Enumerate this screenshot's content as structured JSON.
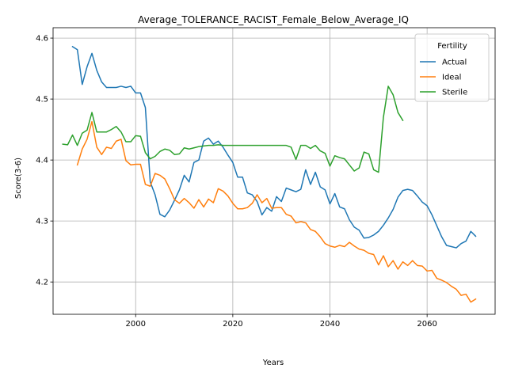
{
  "chart_data": {
    "type": "line",
    "title": "Average_TOLERANCE_RACIST_Female_Below_Average_IQ",
    "xlabel": "Years",
    "ylabel": "Score(3-6)",
    "xlim": [
      1983,
      2074
    ],
    "ylim": [
      4.147,
      4.617
    ],
    "xticks": [
      2000,
      2020,
      2040,
      2060
    ],
    "yticks": [
      4.2,
      4.3,
      4.4,
      4.5,
      4.6
    ],
    "grid": true,
    "legend": {
      "title": "Fertility",
      "placement": "top-right"
    },
    "series": [
      {
        "name": "Actual",
        "color": "#1f77b4",
        "points": [
          [
            1987,
            4.586
          ],
          [
            1988,
            4.581
          ],
          [
            1989,
            4.524
          ],
          [
            1990,
            4.553
          ],
          [
            1991,
            4.575
          ],
          [
            1992,
            4.547
          ],
          [
            1993,
            4.528
          ],
          [
            1994,
            4.519
          ],
          [
            1995,
            4.519
          ],
          [
            1996,
            4.519
          ],
          [
            1997,
            4.521
          ],
          [
            1998,
            4.519
          ],
          [
            1999,
            4.521
          ],
          [
            2000,
            4.51
          ],
          [
            2001,
            4.51
          ],
          [
            2002,
            4.486
          ],
          [
            2003,
            4.364
          ],
          [
            2004,
            4.343
          ],
          [
            2005,
            4.311
          ],
          [
            2006,
            4.307
          ],
          [
            2007,
            4.318
          ],
          [
            2008,
            4.334
          ],
          [
            2009,
            4.351
          ],
          [
            2010,
            4.375
          ],
          [
            2011,
            4.364
          ],
          [
            2012,
            4.396
          ],
          [
            2013,
            4.4
          ],
          [
            2014,
            4.431
          ],
          [
            2015,
            4.436
          ],
          [
            2016,
            4.426
          ],
          [
            2017,
            4.431
          ],
          [
            2018,
            4.421
          ],
          [
            2019,
            4.408
          ],
          [
            2020,
            4.396
          ],
          [
            2021,
            4.372
          ],
          [
            2022,
            4.372
          ],
          [
            2023,
            4.346
          ],
          [
            2024,
            4.343
          ],
          [
            2025,
            4.332
          ],
          [
            2026,
            4.31
          ],
          [
            2027,
            4.322
          ],
          [
            2028,
            4.316
          ],
          [
            2029,
            4.34
          ],
          [
            2030,
            4.332
          ],
          [
            2031,
            4.354
          ],
          [
            2032,
            4.351
          ],
          [
            2033,
            4.348
          ],
          [
            2034,
            4.352
          ],
          [
            2035,
            4.384
          ],
          [
            2036,
            4.36
          ],
          [
            2037,
            4.38
          ],
          [
            2038,
            4.356
          ],
          [
            2039,
            4.351
          ],
          [
            2040,
            4.328
          ],
          [
            2041,
            4.345
          ],
          [
            2042,
            4.323
          ],
          [
            2043,
            4.32
          ],
          [
            2044,
            4.302
          ],
          [
            2045,
            4.29
          ],
          [
            2046,
            4.285
          ],
          [
            2047,
            4.272
          ],
          [
            2048,
            4.273
          ],
          [
            2049,
            4.277
          ],
          [
            2050,
            4.283
          ],
          [
            2051,
            4.293
          ],
          [
            2052,
            4.305
          ],
          [
            2053,
            4.319
          ],
          [
            2054,
            4.339
          ],
          [
            2055,
            4.35
          ],
          [
            2056,
            4.352
          ],
          [
            2057,
            4.35
          ],
          [
            2058,
            4.341
          ],
          [
            2059,
            4.331
          ],
          [
            2060,
            4.325
          ],
          [
            2061,
            4.31
          ],
          [
            2062,
            4.292
          ],
          [
            2063,
            4.274
          ],
          [
            2064,
            4.26
          ],
          [
            2065,
            4.258
          ],
          [
            2066,
            4.256
          ],
          [
            2067,
            4.263
          ],
          [
            2068,
            4.267
          ],
          [
            2069,
            4.283
          ],
          [
            2070,
            4.275
          ]
        ]
      },
      {
        "name": "Ideal",
        "color": "#ff7f0e",
        "points": [
          [
            1988,
            4.392
          ],
          [
            1989,
            4.418
          ],
          [
            1990,
            4.434
          ],
          [
            1991,
            4.463
          ],
          [
            1992,
            4.421
          ],
          [
            1993,
            4.409
          ],
          [
            1994,
            4.421
          ],
          [
            1995,
            4.419
          ],
          [
            1996,
            4.431
          ],
          [
            1997,
            4.434
          ],
          [
            1998,
            4.399
          ],
          [
            1999,
            4.392
          ],
          [
            2000,
            4.393
          ],
          [
            2001,
            4.393
          ],
          [
            2002,
            4.36
          ],
          [
            2003,
            4.357
          ],
          [
            2004,
            4.378
          ],
          [
            2005,
            4.375
          ],
          [
            2006,
            4.369
          ],
          [
            2007,
            4.353
          ],
          [
            2008,
            4.335
          ],
          [
            2009,
            4.329
          ],
          [
            2010,
            4.337
          ],
          [
            2011,
            4.33
          ],
          [
            2012,
            4.321
          ],
          [
            2013,
            4.335
          ],
          [
            2014,
            4.323
          ],
          [
            2015,
            4.336
          ],
          [
            2016,
            4.33
          ],
          [
            2017,
            4.353
          ],
          [
            2018,
            4.349
          ],
          [
            2019,
            4.341
          ],
          [
            2020,
            4.329
          ],
          [
            2021,
            4.32
          ],
          [
            2022,
            4.32
          ],
          [
            2023,
            4.322
          ],
          [
            2024,
            4.329
          ],
          [
            2025,
            4.343
          ],
          [
            2026,
            4.33
          ],
          [
            2027,
            4.337
          ],
          [
            2028,
            4.321
          ],
          [
            2029,
            4.322
          ],
          [
            2030,
            4.322
          ],
          [
            2031,
            4.311
          ],
          [
            2032,
            4.308
          ],
          [
            2033,
            4.297
          ],
          [
            2034,
            4.299
          ],
          [
            2035,
            4.297
          ],
          [
            2036,
            4.286
          ],
          [
            2037,
            4.283
          ],
          [
            2038,
            4.274
          ],
          [
            2039,
            4.263
          ],
          [
            2040,
            4.259
          ],
          [
            2041,
            4.257
          ],
          [
            2042,
            4.26
          ],
          [
            2043,
            4.258
          ],
          [
            2044,
            4.265
          ],
          [
            2045,
            4.259
          ],
          [
            2046,
            4.254
          ],
          [
            2047,
            4.252
          ],
          [
            2048,
            4.247
          ],
          [
            2049,
            4.245
          ],
          [
            2050,
            4.228
          ],
          [
            2051,
            4.243
          ],
          [
            2052,
            4.225
          ],
          [
            2053,
            4.235
          ],
          [
            2054,
            4.221
          ],
          [
            2055,
            4.233
          ],
          [
            2056,
            4.227
          ],
          [
            2057,
            4.235
          ],
          [
            2058,
            4.227
          ],
          [
            2059,
            4.226
          ],
          [
            2060,
            4.218
          ],
          [
            2061,
            4.219
          ],
          [
            2062,
            4.206
          ],
          [
            2063,
            4.203
          ],
          [
            2064,
            4.199
          ],
          [
            2065,
            4.193
          ],
          [
            2066,
            4.188
          ],
          [
            2067,
            4.178
          ],
          [
            2068,
            4.18
          ],
          [
            2069,
            4.167
          ],
          [
            2070,
            4.172
          ]
        ]
      },
      {
        "name": "Sterile",
        "color": "#2ca02c",
        "points": [
          [
            1985,
            4.426
          ],
          [
            1986,
            4.425
          ],
          [
            1987,
            4.441
          ],
          [
            1988,
            4.424
          ],
          [
            1989,
            4.444
          ],
          [
            1990,
            4.449
          ],
          [
            1991,
            4.478
          ],
          [
            1992,
            4.446
          ],
          [
            1993,
            4.446
          ],
          [
            1994,
            4.446
          ],
          [
            1995,
            4.45
          ],
          [
            1996,
            4.455
          ],
          [
            1997,
            4.446
          ],
          [
            1998,
            4.43
          ],
          [
            1999,
            4.43
          ],
          [
            2000,
            4.44
          ],
          [
            2001,
            4.439
          ],
          [
            2002,
            4.412
          ],
          [
            2003,
            4.402
          ],
          [
            2004,
            4.406
          ],
          [
            2005,
            4.414
          ],
          [
            2006,
            4.418
          ],
          [
            2007,
            4.416
          ],
          [
            2008,
            4.409
          ],
          [
            2009,
            4.41
          ],
          [
            2010,
            4.42
          ],
          [
            2011,
            4.418
          ],
          [
            2012,
            4.42
          ],
          [
            2013,
            4.422
          ],
          [
            2014,
            4.423
          ],
          [
            2015,
            4.424
          ],
          [
            2016,
            4.424
          ],
          [
            2017,
            4.425
          ],
          [
            2018,
            4.424
          ],
          [
            2019,
            4.424
          ],
          [
            2020,
            4.424
          ],
          [
            2021,
            4.424
          ],
          [
            2022,
            4.424
          ],
          [
            2023,
            4.424
          ],
          [
            2024,
            4.424
          ],
          [
            2025,
            4.424
          ],
          [
            2026,
            4.424
          ],
          [
            2027,
            4.424
          ],
          [
            2028,
            4.424
          ],
          [
            2029,
            4.424
          ],
          [
            2030,
            4.424
          ],
          [
            2031,
            4.424
          ],
          [
            2032,
            4.421
          ],
          [
            2033,
            4.401
          ],
          [
            2034,
            4.424
          ],
          [
            2035,
            4.424
          ],
          [
            2036,
            4.419
          ],
          [
            2037,
            4.424
          ],
          [
            2038,
            4.415
          ],
          [
            2039,
            4.411
          ],
          [
            2040,
            4.39
          ],
          [
            2041,
            4.407
          ],
          [
            2042,
            4.404
          ],
          [
            2043,
            4.402
          ],
          [
            2044,
            4.392
          ],
          [
            2045,
            4.382
          ],
          [
            2046,
            4.387
          ],
          [
            2047,
            4.413
          ],
          [
            2048,
            4.41
          ],
          [
            2049,
            4.384
          ],
          [
            2050,
            4.38
          ],
          [
            2051,
            4.47
          ],
          [
            2052,
            4.521
          ],
          [
            2053,
            4.507
          ],
          [
            2054,
            4.478
          ],
          [
            2055,
            4.465
          ]
        ]
      }
    ]
  }
}
